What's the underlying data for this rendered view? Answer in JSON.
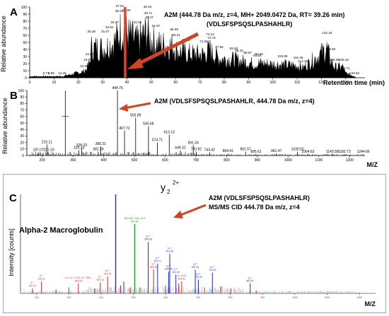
{
  "figure": {
    "panel_a": {
      "letter": "A",
      "annotation_line1": "A2M (444.78 Da m/z, z=4, MH+ 2049.0472 Da, RT= 39.26 min)",
      "annotation_line2": "(VDLSFSPSQSLPASHAHLR)",
      "ylabel": "Relative abundance",
      "xlabel": "Retention time (min)"
    },
    "panel_b": {
      "letter": "B",
      "annotation": "A2M (VDLSFSPSQSLPASHAHLR, 444.78 Da m/z, z=4)",
      "ylabel": "Relative abundance",
      "xlabel": "M/Z"
    },
    "panel_c": {
      "letter": "C",
      "annotation_line1": "A2M (VDLSFSPSQSLPASHAHLR)",
      "annotation_line2": "MS/MS CID 444.78 Da m/z, z=4",
      "protein_label": "Alpha-2 Macroglobulin",
      "ylabel": "Intensity [counts]",
      "xlabel": "M/Z",
      "ion_label": "y",
      "ion_subscript": "2",
      "ion_superscript": "2+"
    },
    "colors": {
      "trace": "#000000",
      "arrow": "#d0441e",
      "highlight": "#e8402a",
      "b_ions": "#d62020",
      "y_ions": "#1a2bd6",
      "precursor_ions": "#1aa01a",
      "noise": "#8a8a8a"
    }
  },
  "chart_data": [
    {
      "type": "area",
      "title": "A",
      "xlabel": "Retention time (min)",
      "ylabel": "Relative abundance",
      "xlim": [
        0,
        135
      ],
      "ylim": [
        0,
        100
      ],
      "x_ticks": [
        0,
        10,
        20,
        30,
        40,
        50,
        60,
        70,
        80,
        90,
        100,
        110,
        120,
        130
      ],
      "y_ticks": [
        0,
        10,
        20,
        30,
        40,
        50,
        60,
        70,
        80,
        90,
        100
      ],
      "highlight_x": 39.26,
      "labeled_peaks": [
        {
          "x": 6.71,
          "y": 3
        },
        {
          "x": 8.86,
          "y": 3
        },
        {
          "x": 13.35,
          "y": 3
        },
        {
          "x": 22.38,
          "y": 13
        },
        {
          "x": 23.83,
          "y": 22
        },
        {
          "x": 24.62,
          "y": 30
        },
        {
          "x": 25.38,
          "y": 62
        },
        {
          "x": 31.07,
          "y": 62
        },
        {
          "x": 32.82,
          "y": 68
        },
        {
          "x": 34.97,
          "y": 75
        },
        {
          "x": 36.84,
          "y": 91
        },
        {
          "x": 37.03,
          "y": 98
        },
        {
          "x": 39.8,
          "y": 92
        },
        {
          "x": 44.36,
          "y": 75
        },
        {
          "x": 48.43,
          "y": 97
        },
        {
          "x": 48.71,
          "y": 88
        },
        {
          "x": 49.27,
          "y": 82
        },
        {
          "x": 51.97,
          "y": 70
        },
        {
          "x": 59.39,
          "y": 65
        },
        {
          "x": 60.21,
          "y": 57
        },
        {
          "x": 64.3,
          "y": 50
        },
        {
          "x": 71.58,
          "y": 48
        },
        {
          "x": 74.24,
          "y": 58
        },
        {
          "x": 74.73,
          "y": 53
        },
        {
          "x": 77.96,
          "y": 40
        },
        {
          "x": 83.93,
          "y": 38
        },
        {
          "x": 86.15,
          "y": 35
        },
        {
          "x": 89.67,
          "y": 32
        },
        {
          "x": 93.62,
          "y": 28
        },
        {
          "x": 94.3,
          "y": 30
        },
        {
          "x": 103.98,
          "y": 27
        },
        {
          "x": 110.45,
          "y": 25
        },
        {
          "x": 112.39,
          "y": 20
        },
        {
          "x": 122.33,
          "y": 60
        },
        {
          "x": 123.68,
          "y": 37
        },
        {
          "x": 125.39,
          "y": 22
        },
        {
          "x": 129.15,
          "y": 22
        },
        {
          "x": 129.71,
          "y": 10
        },
        {
          "x": 133.53,
          "y": 3
        }
      ]
    },
    {
      "type": "bar",
      "title": "B",
      "xlabel": "M/Z",
      "ylabel": "Relative abundance",
      "xlim": [
        150,
        1250
      ],
      "ylim": [
        0,
        100
      ],
      "x_ticks": [
        200,
        300,
        400,
        500,
        600,
        700,
        800,
        900,
        1000,
        1100,
        1200
      ],
      "y_ticks": [
        0,
        10,
        20,
        30,
        40,
        50,
        60,
        70,
        80,
        90,
        100
      ],
      "peaks": [
        {
          "x": 187.07,
          "y": 5
        },
        {
          "x": 215.11,
          "y": 17
        },
        {
          "x": 221.1,
          "y": 5
        },
        {
          "x": 275.0,
          "y": 100
        },
        {
          "x": 319.14,
          "y": 8
        },
        {
          "x": 328.23,
          "y": 12
        },
        {
          "x": 382.24,
          "y": 6
        },
        {
          "x": 390.21,
          "y": 14
        },
        {
          "x": 444.76,
          "y": 100
        },
        {
          "x": 467.72,
          "y": 38
        },
        {
          "x": 503.89,
          "y": 58
        },
        {
          "x": 545.68,
          "y": 45
        },
        {
          "x": 574.71,
          "y": 20
        },
        {
          "x": 613.13,
          "y": 32
        },
        {
          "x": 649.32,
          "y": 8
        },
        {
          "x": 691.34,
          "y": 16
        },
        {
          "x": 700.92,
          "y": 6
        },
        {
          "x": 744.42,
          "y": 5
        },
        {
          "x": 804.41,
          "y": 3
        },
        {
          "x": 861.57,
          "y": 6
        },
        {
          "x": 895.61,
          "y": 2
        },
        {
          "x": 961.47,
          "y": 3
        },
        {
          "x": 1030.52,
          "y": 6
        },
        {
          "x": 1064.62,
          "y": 2
        },
        {
          "x": 1143.58,
          "y": 2
        },
        {
          "x": 1182.73,
          "y": 2
        },
        {
          "x": 1244.66,
          "y": 2
        }
      ]
    },
    {
      "type": "bar",
      "title": "C",
      "xlabel": "M/Z",
      "ylabel": "Intensity [counts]",
      "xlim": [
        150,
        1250
      ],
      "x_ticks": [
        200,
        300,
        400,
        500,
        600,
        700,
        800,
        900,
        1000,
        1100,
        1200
      ],
      "series": [
        {
          "color_key": "b_ions",
          "values": [
            {
              "x": 187.07,
              "y": 5,
              "label": "b₂⁺",
              "mz": "187.07"
            },
            {
              "x": 215.11,
              "y": 12,
              "label": "b₂⁺",
              "mz": "215.11"
            },
            {
              "x": 260.0,
              "y": 4
            },
            {
              "x": 300.0,
              "y": 6
            },
            {
              "x": 329.23,
              "y": 10,
              "label": "b₃⁺, b₃⁶⁺-H₂O, b₃⁸⁺-NH₃",
              "mz": "329.23"
            },
            {
              "x": 380.0,
              "y": 5
            },
            {
              "x": 397.24,
              "y": 11,
              "label": "b₄⁺",
              "mz": "397.24"
            },
            {
              "x": 419.7,
              "y": 17,
              "label": "b₄⁵⁺",
              "mz": "419.70"
            },
            {
              "x": 460.0,
              "y": 8
            },
            {
              "x": 490.0,
              "y": 6
            },
            {
              "x": 562.33,
              "y": 24,
              "label": "b₅⁺",
              "mz": "562.33"
            },
            {
              "x": 599.0,
              "y": 8
            },
            {
              "x": 640.0,
              "y": 10
            },
            {
              "x": 649.32,
              "y": 12,
              "label": "b₆⁺-H₂O",
              "mz": "649.32"
            },
            {
              "x": 720.0,
              "y": 6
            },
            {
              "x": 770.0,
              "y": 7
            },
            {
              "x": 801.0,
              "y": 5
            },
            {
              "x": 880.0,
              "y": 3
            }
          ]
        },
        {
          "color_key": "y_ions",
          "values": [
            {
              "x": 444.78,
              "y": 100,
              "label": "y₂²⁺",
              "mz": ""
            },
            {
              "x": 470.0,
              "y": 12
            },
            {
              "x": 545.68,
              "y": 52,
              "label": "y₄²⁺",
              "mz": "545.68"
            },
            {
              "x": 574.71,
              "y": 30,
              "label": "y₅²⁺",
              "mz": "574.71"
            },
            {
              "x": 608.85,
              "y": 22,
              "label": "y₆²⁺",
              "mz": "608.85"
            },
            {
              "x": 612.36,
              "y": 40,
              "label": "y₆²⁺",
              "mz": "612.36"
            },
            {
              "x": 631.34,
              "y": 19,
              "label": "y₇²⁺",
              "mz": "631.34"
            },
            {
              "x": 691.34,
              "y": 24,
              "label": "y₈²⁺",
              "mz": "691.34"
            },
            {
              "x": 700.92,
              "y": 14,
              "label": "y₉²⁺",
              "mz": "700.92"
            },
            {
              "x": 744.42,
              "y": 21,
              "label": "y₁₀²⁺",
              "mz": "744.42"
            },
            {
              "x": 861.57,
              "y": 10,
              "label": "y₁₁⁺",
              "mz": "861.57"
            }
          ]
        },
        {
          "color_key": "precursor_ions",
          "values": [
            {
              "x": 503.84,
              "y": 70,
              "label": "[M+4H]⁴⁺-NH₃-H₂O",
              "mz": "503.84"
            },
            {
              "x": 520.0,
              "y": 6
            }
          ]
        }
      ]
    }
  ]
}
